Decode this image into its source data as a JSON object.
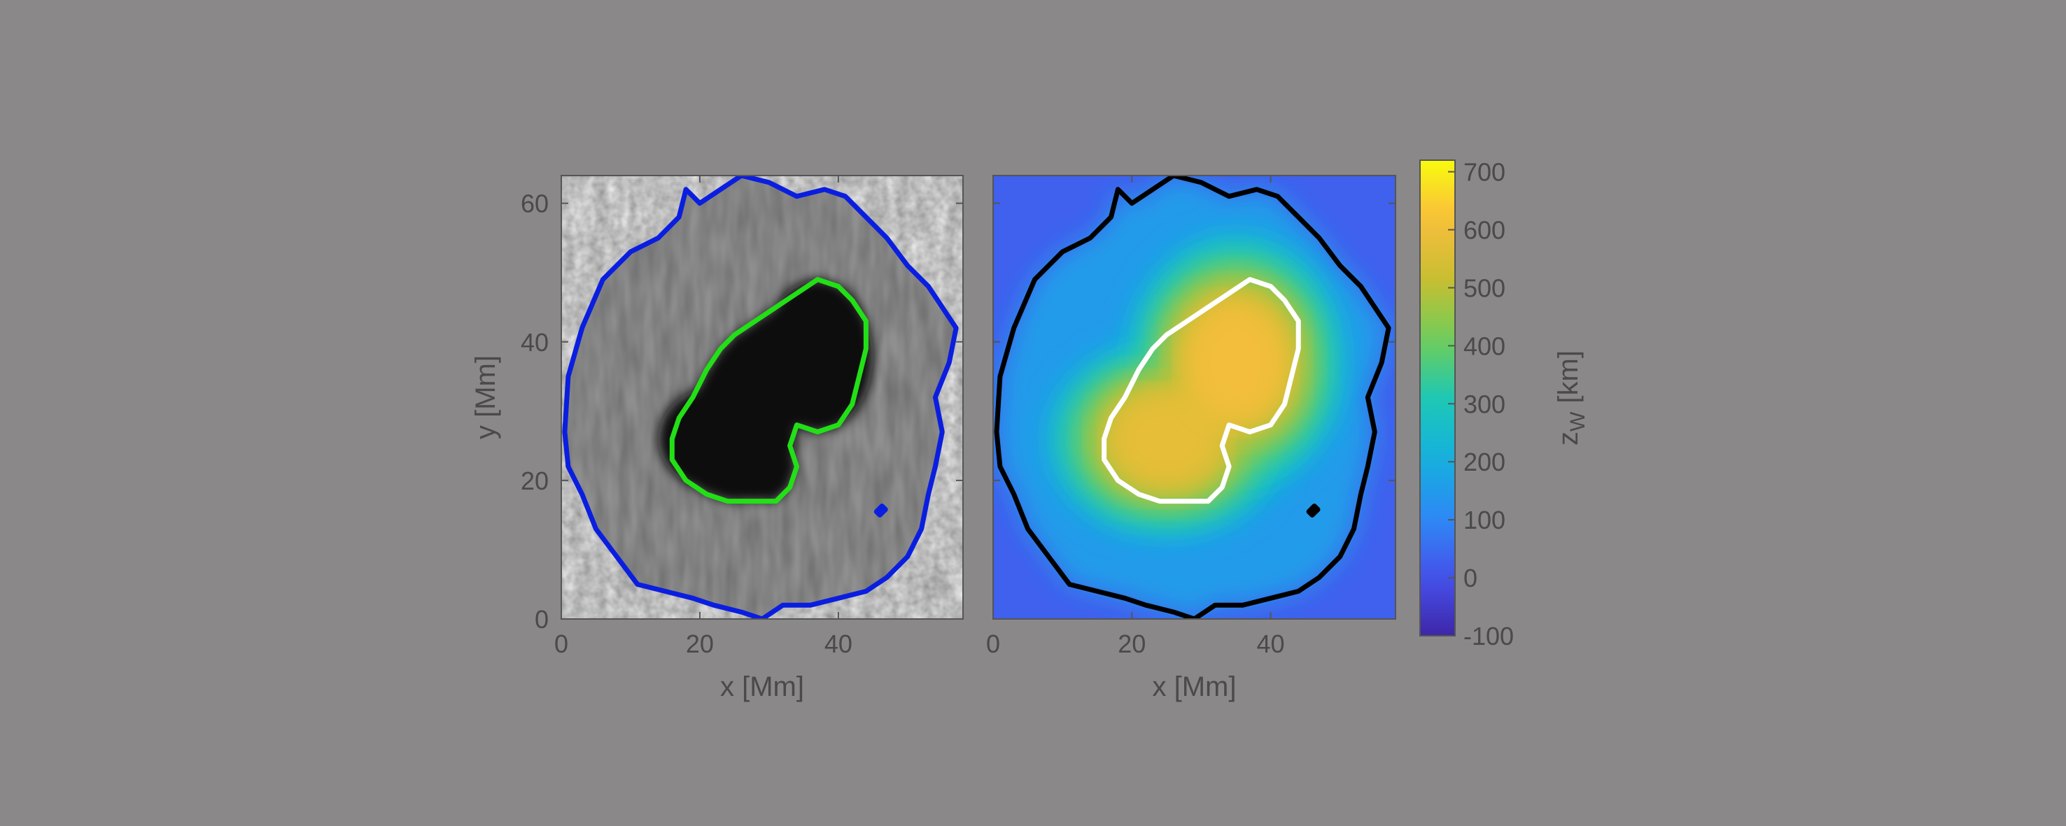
{
  "chart_data": [
    {
      "type": "heatmap",
      "panel": "intensity-image",
      "colormap": "gray",
      "xlabel": "x [Mm]",
      "ylabel": "y [Mm]",
      "xlim": [
        0,
        58
      ],
      "ylim": [
        0,
        64
      ],
      "xticks": [
        0,
        20,
        40
      ],
      "yticks": [
        0,
        20,
        40,
        60
      ],
      "umbra": {
        "lobes": [
          {
            "x": 24,
            "y": 26,
            "rx": 10,
            "ry": 8
          },
          {
            "x": 37,
            "y": 38,
            "rx": 8,
            "ry": 11
          }
        ]
      },
      "contours": [
        {
          "name": "outer boundary",
          "color": "#0a1ee0",
          "points": [
            [
              0.5,
              27
            ],
            [
              1,
              35
            ],
            [
              3,
              42
            ],
            [
              6,
              49
            ],
            [
              10,
              53
            ],
            [
              14,
              55
            ],
            [
              17,
              58
            ],
            [
              18,
              62
            ],
            [
              20,
              60
            ],
            [
              23,
              62
            ],
            [
              26,
              64
            ],
            [
              30,
              63
            ],
            [
              34,
              61
            ],
            [
              38,
              62
            ],
            [
              41,
              61
            ],
            [
              44,
              58
            ],
            [
              47,
              55
            ],
            [
              50,
              51
            ],
            [
              53,
              48
            ],
            [
              55,
              45
            ],
            [
              57,
              42
            ],
            [
              56,
              37
            ],
            [
              54,
              32
            ],
            [
              55,
              27
            ],
            [
              54,
              22
            ],
            [
              53,
              18
            ],
            [
              52,
              13
            ],
            [
              50,
              9
            ],
            [
              47,
              6
            ],
            [
              44,
              4
            ],
            [
              40,
              3
            ],
            [
              36,
              2
            ],
            [
              32,
              2
            ],
            [
              29,
              0
            ],
            [
              26,
              1
            ],
            [
              22,
              2
            ],
            [
              19,
              3
            ],
            [
              15,
              4
            ],
            [
              11,
              5
            ],
            [
              8,
              9
            ],
            [
              5,
              13
            ],
            [
              3,
              18
            ],
            [
              1,
              22
            ]
          ]
        },
        {
          "name": "umbra boundary",
          "color": "#22e016",
          "points": [
            [
              16,
              26
            ],
            [
              17,
              29
            ],
            [
              19,
              32
            ],
            [
              21,
              36
            ],
            [
              23,
              39
            ],
            [
              25,
              41
            ],
            [
              28,
              43
            ],
            [
              31,
              45
            ],
            [
              34,
              47
            ],
            [
              37,
              49
            ],
            [
              40,
              48
            ],
            [
              42,
              46
            ],
            [
              44,
              43
            ],
            [
              44,
              39
            ],
            [
              43,
              35
            ],
            [
              42,
              31
            ],
            [
              40,
              28
            ],
            [
              37,
              27
            ],
            [
              34,
              28
            ],
            [
              33,
              25
            ],
            [
              34,
              22
            ],
            [
              33,
              19
            ],
            [
              31,
              17
            ],
            [
              28,
              17
            ],
            [
              24,
              17
            ],
            [
              21,
              18
            ],
            [
              18,
              20
            ],
            [
              16,
              23
            ]
          ]
        },
        {
          "name": "small island",
          "color": "#0a1ee0",
          "points": [
            [
              45.5,
              15.5
            ],
            [
              46.3,
              16.3
            ],
            [
              46.8,
              15.8
            ],
            [
              46,
              15
            ]
          ]
        }
      ]
    },
    {
      "type": "heatmap",
      "panel": "wilson-depression-map",
      "colormap": "parula",
      "xlabel": "x [Mm]",
      "xlim": [
        0,
        58
      ],
      "ylim": [
        0,
        64
      ],
      "xticks": [
        0,
        20,
        40
      ],
      "colorbar": {
        "label": "z",
        "label_subscript": "W",
        "label_unit": "[km]",
        "range": [
          -100,
          720
        ],
        "ticks": [
          700,
          600,
          500,
          400,
          300,
          200,
          100,
          0,
          -100
        ]
      },
      "field_peaks": [
        {
          "x": 25,
          "y": 26,
          "value": 620,
          "rx": 12,
          "ry": 10
        },
        {
          "x": 35,
          "y": 37,
          "value": 650,
          "rx": 11,
          "ry": 13
        }
      ],
      "background_value": 30,
      "contours": [
        {
          "name": "outer boundary",
          "color": "#000000",
          "points": [
            [
              0.5,
              27
            ],
            [
              1,
              35
            ],
            [
              3,
              42
            ],
            [
              6,
              49
            ],
            [
              10,
              53
            ],
            [
              14,
              55
            ],
            [
              17,
              58
            ],
            [
              18,
              62
            ],
            [
              20,
              60
            ],
            [
              23,
              62
            ],
            [
              26,
              64
            ],
            [
              30,
              63
            ],
            [
              34,
              61
            ],
            [
              38,
              62
            ],
            [
              41,
              61
            ],
            [
              44,
              58
            ],
            [
              47,
              55
            ],
            [
              50,
              51
            ],
            [
              53,
              48
            ],
            [
              55,
              45
            ],
            [
              57,
              42
            ],
            [
              56,
              37
            ],
            [
              54,
              32
            ],
            [
              55,
              27
            ],
            [
              54,
              22
            ],
            [
              53,
              18
            ],
            [
              52,
              13
            ],
            [
              50,
              9
            ],
            [
              47,
              6
            ],
            [
              44,
              4
            ],
            [
              40,
              3
            ],
            [
              36,
              2
            ],
            [
              32,
              2
            ],
            [
              29,
              0
            ],
            [
              26,
              1
            ],
            [
              22,
              2
            ],
            [
              19,
              3
            ],
            [
              15,
              4
            ],
            [
              11,
              5
            ],
            [
              8,
              9
            ],
            [
              5,
              13
            ],
            [
              3,
              18
            ],
            [
              1,
              22
            ]
          ]
        },
        {
          "name": "umbra boundary",
          "color": "#ffffff",
          "points": [
            [
              16,
              26
            ],
            [
              17,
              29
            ],
            [
              19,
              32
            ],
            [
              21,
              36
            ],
            [
              23,
              39
            ],
            [
              25,
              41
            ],
            [
              28,
              43
            ],
            [
              31,
              45
            ],
            [
              34,
              47
            ],
            [
              37,
              49
            ],
            [
              40,
              48
            ],
            [
              42,
              46
            ],
            [
              44,
              43
            ],
            [
              44,
              39
            ],
            [
              43,
              35
            ],
            [
              42,
              31
            ],
            [
              40,
              28
            ],
            [
              37,
              27
            ],
            [
              34,
              28
            ],
            [
              33,
              25
            ],
            [
              34,
              22
            ],
            [
              33,
              19
            ],
            [
              31,
              17
            ],
            [
              28,
              17
            ],
            [
              24,
              17
            ],
            [
              21,
              18
            ],
            [
              18,
              20
            ],
            [
              16,
              23
            ]
          ]
        },
        {
          "name": "small island",
          "color": "#000000",
          "points": [
            [
              45.5,
              15.5
            ],
            [
              46.3,
              16.3
            ],
            [
              46.8,
              15.8
            ],
            [
              46,
              15
            ]
          ]
        }
      ]
    }
  ]
}
